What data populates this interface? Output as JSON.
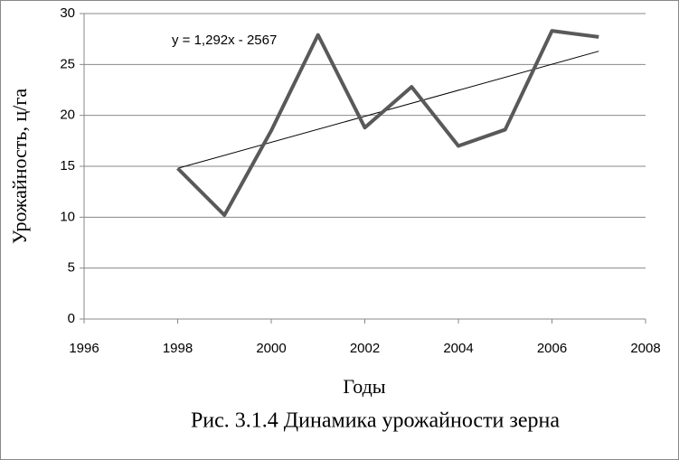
{
  "chart_data": {
    "type": "line",
    "x": [
      1998,
      1999,
      2000,
      2001,
      2002,
      2003,
      2004,
      2005,
      2006,
      2007
    ],
    "series": [
      {
        "color": "#595959",
        "values": [
          14.8,
          10.2,
          18.5,
          27.9,
          18.8,
          22.8,
          17.0,
          18.6,
          28.3,
          27.7
        ]
      }
    ],
    "trendline": {
      "x": [
        1998,
        2007
      ],
      "values": [
        14.8,
        26.3
      ],
      "color": "#000000",
      "label": "y = 1,292x - 2567"
    },
    "xlim": [
      1996,
      2008
    ],
    "xticks": [
      1996,
      1998,
      2000,
      2002,
      2004,
      2006,
      2008
    ],
    "ylim": [
      0,
      30
    ],
    "yticks": [
      0,
      5,
      10,
      15,
      20,
      25,
      30
    ],
    "grid": true,
    "xlabel": "Годы",
    "ylabel": "Урожайность, ц/га",
    "caption": "Рис. 3.1.4 Динамика урожайности зерна"
  }
}
